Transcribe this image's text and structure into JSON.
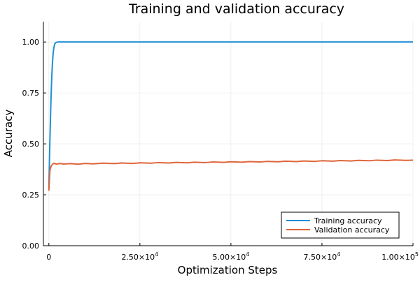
{
  "chart_data": {
    "type": "line",
    "title": "Training and validation accuracy",
    "xlabel": "Optimization Steps",
    "ylabel": "Accuracy",
    "xlim": [
      -1500,
      100000
    ],
    "ylim": [
      0,
      1.1
    ],
    "grid": true,
    "legend_position": "bottom-right",
    "x_ticks": [
      {
        "value": 0,
        "mantissa": "0",
        "exponent": ""
      },
      {
        "value": 25000,
        "mantissa": "2.50×10",
        "exponent": "4"
      },
      {
        "value": 50000,
        "mantissa": "5.00×10",
        "exponent": "4"
      },
      {
        "value": 75000,
        "mantissa": "7.50×10",
        "exponent": "4"
      },
      {
        "value": 100000,
        "mantissa": "1.00×10",
        "exponent": "5"
      }
    ],
    "y_ticks": [
      {
        "value": 0,
        "label": "0.00"
      },
      {
        "value": 0.25,
        "label": "0.25"
      },
      {
        "value": 0.5,
        "label": "0.50"
      },
      {
        "value": 0.75,
        "label": "0.75"
      },
      {
        "value": 1.0,
        "label": "1.00"
      }
    ],
    "series": [
      {
        "name": "Training accuracy",
        "color": "#1f8fd6",
        "x": [
          0,
          200,
          400,
          600,
          800,
          1000,
          1200,
          1400,
          1600,
          1800,
          2000,
          2500,
          3000,
          5000,
          10000,
          25000,
          50000,
          75000,
          100000
        ],
        "y": [
          0.28,
          0.45,
          0.6,
          0.73,
          0.83,
          0.9,
          0.95,
          0.975,
          0.99,
          0.995,
          0.998,
          1.0,
          1.0,
          1.0,
          1.0,
          1.0,
          1.0,
          1.0,
          1.0
        ]
      },
      {
        "name": "Validation accuracy",
        "color": "#e0653a",
        "x": [
          0,
          300,
          600,
          1000,
          1500,
          2000,
          3000,
          4000,
          6000,
          8000,
          10000,
          12000,
          15000,
          18000,
          20000,
          23000,
          25000,
          28000,
          30000,
          33000,
          35000,
          38000,
          40000,
          43000,
          45000,
          48000,
          50000,
          53000,
          55000,
          58000,
          60000,
          63000,
          65000,
          68000,
          70000,
          73000,
          75000,
          78000,
          80000,
          83000,
          85000,
          88000,
          90000,
          93000,
          95000,
          98000,
          100000
        ],
        "y": [
          0.27,
          0.37,
          0.39,
          0.4,
          0.405,
          0.4,
          0.404,
          0.401,
          0.403,
          0.4,
          0.404,
          0.402,
          0.405,
          0.403,
          0.406,
          0.404,
          0.407,
          0.405,
          0.408,
          0.406,
          0.409,
          0.407,
          0.41,
          0.408,
          0.411,
          0.409,
          0.412,
          0.41,
          0.413,
          0.411,
          0.414,
          0.412,
          0.415,
          0.413,
          0.416,
          0.414,
          0.417,
          0.415,
          0.418,
          0.416,
          0.419,
          0.417,
          0.42,
          0.418,
          0.421,
          0.419,
          0.42
        ]
      }
    ]
  }
}
